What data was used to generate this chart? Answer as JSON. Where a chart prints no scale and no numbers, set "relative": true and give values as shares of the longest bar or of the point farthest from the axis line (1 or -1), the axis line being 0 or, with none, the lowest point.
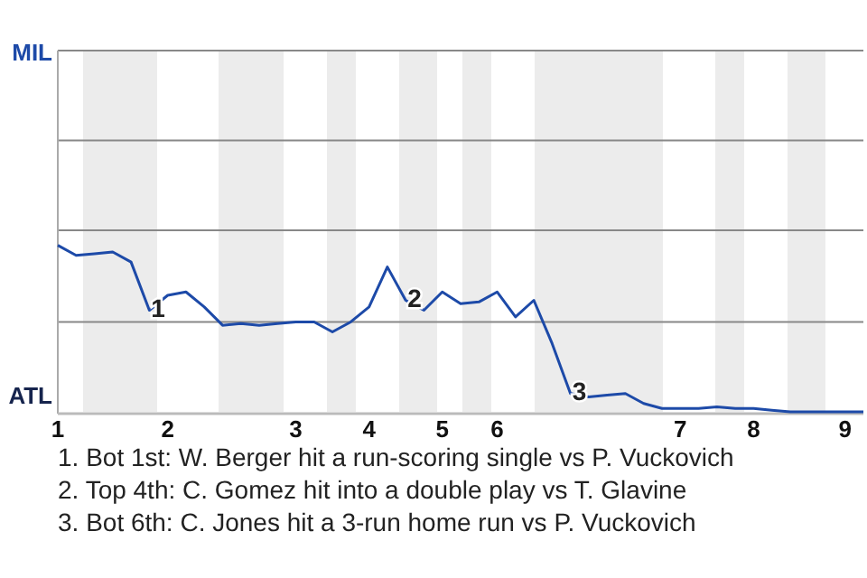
{
  "chart_data": {
    "type": "line",
    "relative": true,
    "categories": [
      "1",
      null,
      null,
      null,
      null,
      null,
      "2",
      null,
      null,
      null,
      null,
      null,
      null,
      "3",
      null,
      null,
      null,
      "4",
      null,
      null,
      null,
      "5",
      null,
      null,
      "6",
      null,
      null,
      null,
      null,
      null,
      null,
      null,
      null,
      null,
      "7",
      null,
      null,
      null,
      "8",
      null,
      null,
      null,
      null,
      "9",
      null
    ],
    "series": [
      {
        "color": "#1d4aa8",
        "values": [
          1.0,
          0.94,
          0.95,
          0.96,
          0.9,
          0.61,
          0.7,
          0.72,
          0.63,
          0.52,
          0.53,
          0.52,
          0.53,
          0.54,
          0.54,
          0.48,
          0.54,
          0.63,
          0.87,
          0.67,
          0.61,
          0.72,
          0.65,
          0.66,
          0.72,
          0.57,
          0.67,
          0.41,
          0.11,
          0.09,
          0.1,
          0.11,
          0.05,
          0.02,
          0.02,
          0.02,
          0.03,
          0.02,
          0.02,
          0.01,
          0.0,
          0.0,
          0.0,
          0.0,
          0.0
        ]
      }
    ],
    "ref_lines": [
      {
        "axis": "y",
        "value": 0.54,
        "color": "#888888"
      },
      {
        "axis": "y",
        "value": 1.09,
        "color": "#888888"
      },
      {
        "axis": "y",
        "value": 1.63,
        "color": "#888888"
      }
    ],
    "annotations": [
      "MIL",
      "ATL",
      {
        "text": "1",
        "y": 0.61
      },
      {
        "text": "2",
        "y": 0.67
      },
      {
        "text": "3",
        "y": 0.11
      },
      "1. Bot 1st: W. Berger hit a run-scoring single vs P. Vuckovich",
      "2. Top 4th: C. Gomez hit into a double play vs T. Glavine",
      "3. Bot 6th: C. Jones hit a 3-run home run vs P. Vuckovich"
    ]
  }
}
